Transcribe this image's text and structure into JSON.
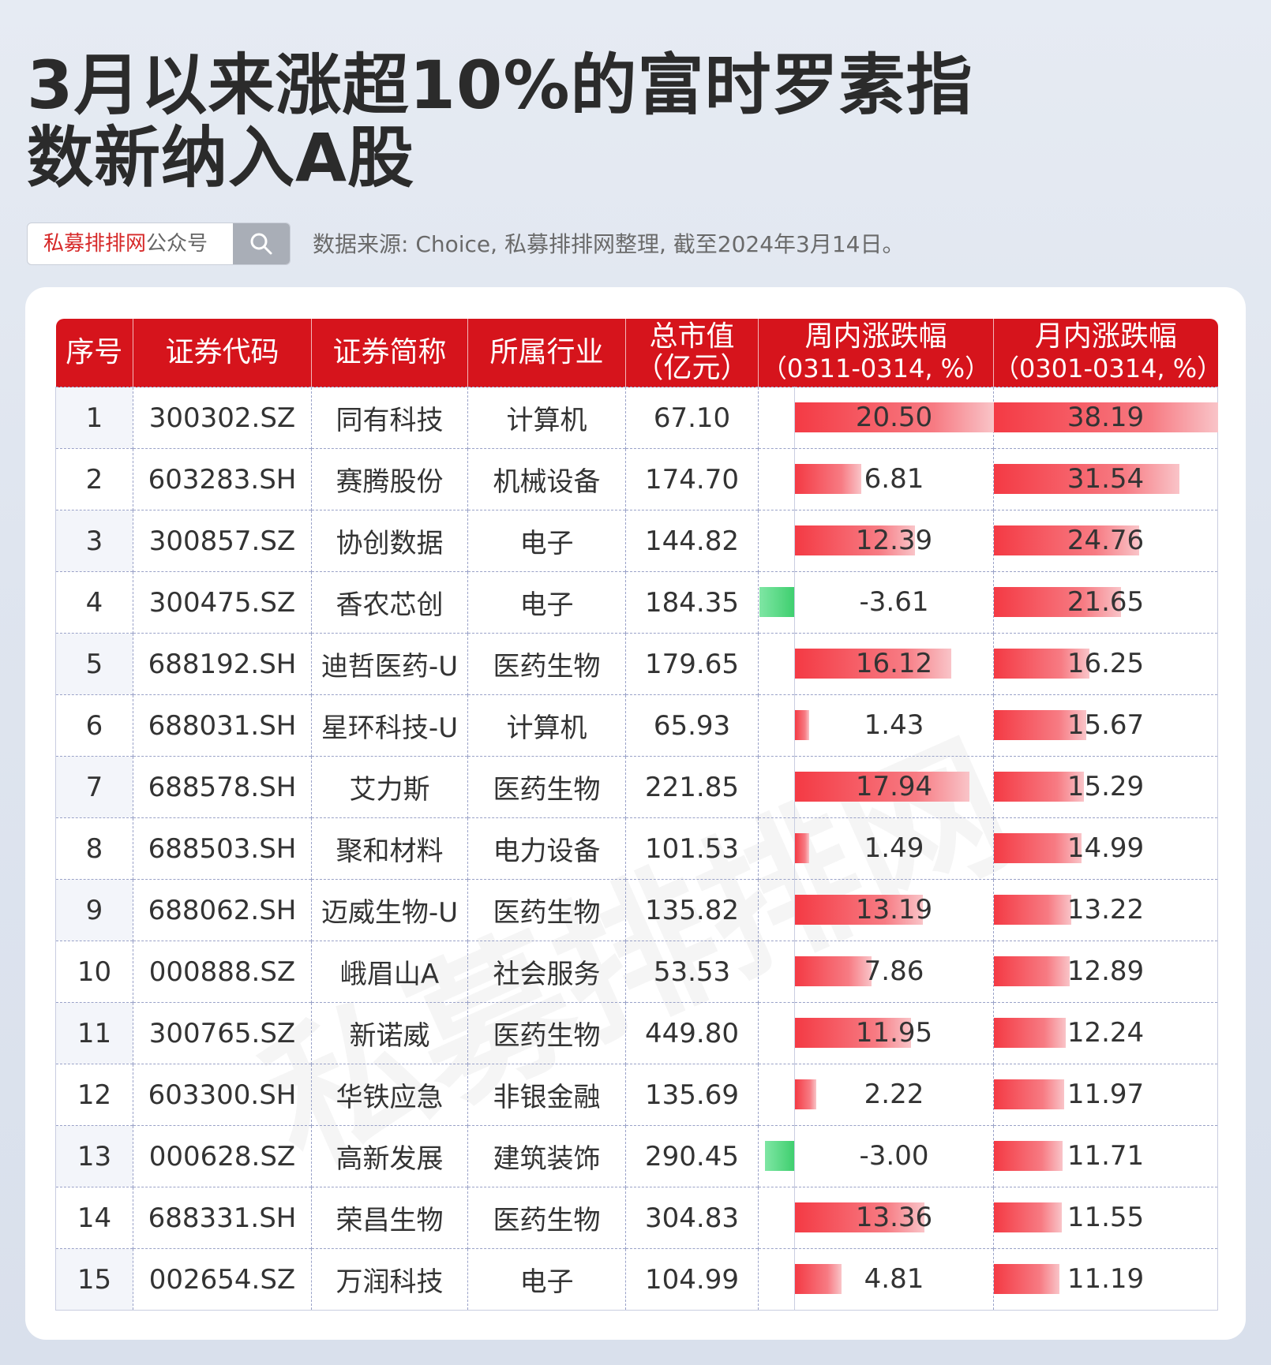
{
  "title": "3月以来涨超10%的富时罗素指数新纳入A股",
  "search": {
    "brand": "私募排排网",
    "suffix": "公众号"
  },
  "source": "数据来源: Choice, 私募排排网整理, 截至2024年3月14日。",
  "watermark": "私募排排网",
  "colors": {
    "header": "#d6141c",
    "positive": "#f43a44",
    "negative": "#3fcf6f"
  },
  "headers": {
    "seq": "序号",
    "code": "证券代码",
    "name": "证券简称",
    "industry": "所属行业",
    "mcap_line1": "总市值",
    "mcap_line2": "（亿元）",
    "week_line1": "周内涨跌幅",
    "week_line2": "（0311-0314, %）",
    "month_line1": "月内涨跌幅",
    "month_line2": "（0301-0314, %）"
  },
  "chart_data": {
    "type": "table",
    "columns": [
      "序号",
      "证券代码",
      "证券简称",
      "所属行业",
      "总市值（亿元）",
      "周内涨跌幅（0311-0314, %）",
      "月内涨跌幅（0301-0314, %）"
    ],
    "rows": [
      {
        "seq": "1",
        "code": "300302.SZ",
        "name": "同有科技",
        "industry": "计算机",
        "mcap": "67.10",
        "week": 20.5,
        "month": 38.19
      },
      {
        "seq": "2",
        "code": "603283.SH",
        "name": "赛腾股份",
        "industry": "机械设备",
        "mcap": "174.70",
        "week": 6.81,
        "month": 31.54
      },
      {
        "seq": "3",
        "code": "300857.SZ",
        "name": "协创数据",
        "industry": "电子",
        "mcap": "144.82",
        "week": 12.39,
        "month": 24.76
      },
      {
        "seq": "4",
        "code": "300475.SZ",
        "name": "香农芯创",
        "industry": "电子",
        "mcap": "184.35",
        "week": -3.61,
        "month": 21.65
      },
      {
        "seq": "5",
        "code": "688192.SH",
        "name": "迪哲医药-U",
        "industry": "医药生物",
        "mcap": "179.65",
        "week": 16.12,
        "month": 16.25
      },
      {
        "seq": "6",
        "code": "688031.SH",
        "name": "星环科技-U",
        "industry": "计算机",
        "mcap": "65.93",
        "week": 1.43,
        "month": 15.67
      },
      {
        "seq": "7",
        "code": "688578.SH",
        "name": "艾力斯",
        "industry": "医药生物",
        "mcap": "221.85",
        "week": 17.94,
        "month": 15.29
      },
      {
        "seq": "8",
        "code": "688503.SH",
        "name": "聚和材料",
        "industry": "电力设备",
        "mcap": "101.53",
        "week": 1.49,
        "month": 14.99
      },
      {
        "seq": "9",
        "code": "688062.SH",
        "name": "迈威生物-U",
        "industry": "医药生物",
        "mcap": "135.82",
        "week": 13.19,
        "month": 13.22
      },
      {
        "seq": "10",
        "code": "000888.SZ",
        "name": "峨眉山A",
        "industry": "社会服务",
        "mcap": "53.53",
        "week": 7.86,
        "month": 12.89
      },
      {
        "seq": "11",
        "code": "300765.SZ",
        "name": "新诺威",
        "industry": "医药生物",
        "mcap": "449.80",
        "week": 11.95,
        "month": 12.24
      },
      {
        "seq": "12",
        "code": "603300.SH",
        "name": "华铁应急",
        "industry": "非银金融",
        "mcap": "135.69",
        "week": 2.22,
        "month": 11.97
      },
      {
        "seq": "13",
        "code": "000628.SZ",
        "name": "高新发展",
        "industry": "建筑装饰",
        "mcap": "290.45",
        "week": -3.0,
        "month": 11.71
      },
      {
        "seq": "14",
        "code": "688331.SH",
        "name": "荣昌生物",
        "industry": "医药生物",
        "mcap": "304.83",
        "week": 13.36,
        "month": 11.55
      },
      {
        "seq": "15",
        "code": "002654.SZ",
        "name": "万润科技",
        "industry": "电子",
        "mcap": "104.99",
        "week": 4.81,
        "month": 11.19
      }
    ]
  }
}
